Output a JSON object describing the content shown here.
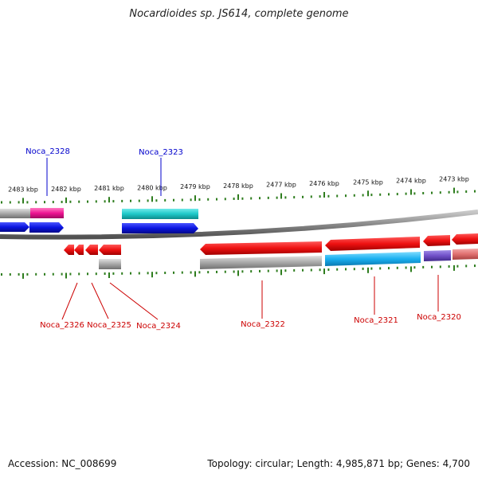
{
  "title": "Nocardioides sp. JS614, complete genome",
  "accession_text": "Accession: NC_008699",
  "summary_text": "Topology: circular; Length: 4,985,871 bp; Genes: 4,700",
  "ruler_ticks": [
    "2483 kbp",
    "2482 kbp",
    "2481 kbp",
    "2480 kbp",
    "2479 kbp",
    "2478 kbp",
    "2477 kbp",
    "2476 kbp",
    "2475 kbp",
    "2474 kbp",
    "2473 kbp"
  ],
  "colors": {
    "label_forward": "#0000cc",
    "label_reverse": "#cc0000",
    "tick": "#2e7d1e",
    "backbone": "#888888",
    "forward_gene": "#0a14e0",
    "reverse_gene": "#ee1111",
    "cyan_feature": "#1ec8c8",
    "magenta_feature": "#ee1493",
    "gray_feature": "#a8a8a8",
    "sky_feature": "#1ab0f0",
    "purple_feature": "#7050c8",
    "pink_feature": "#e07070"
  },
  "gene_labels": {
    "top": [
      "Noca_2328",
      "Noca_2323"
    ],
    "bottom": [
      "Noca_2326",
      "Noca_2325",
      "Noca_2324",
      "Noca_2322",
      "Noca_2321",
      "Noca_2320"
    ]
  }
}
